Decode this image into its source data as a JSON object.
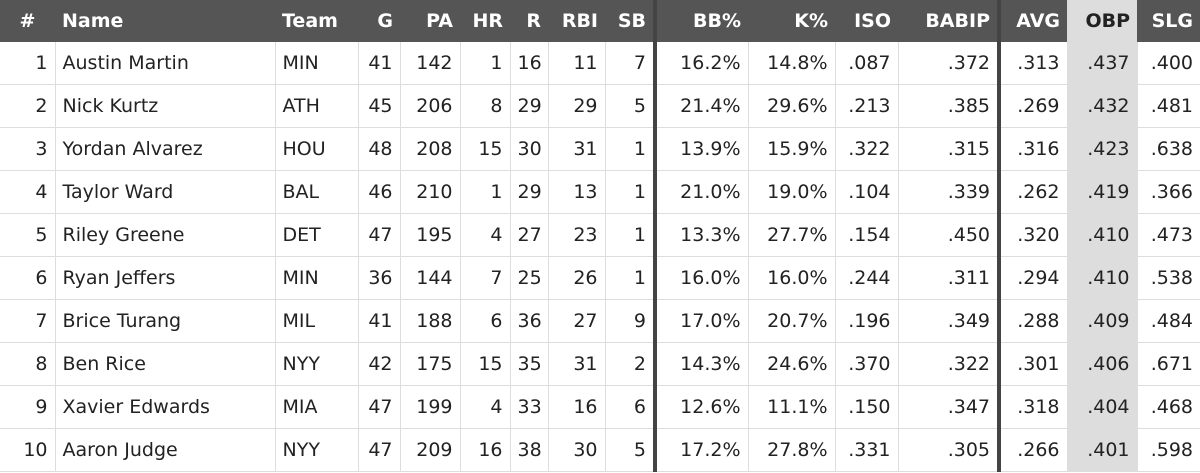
{
  "table": {
    "columns": [
      "#",
      "Name",
      "Team",
      "G",
      "PA",
      "HR",
      "R",
      "RBI",
      "SB",
      "BB%",
      "K%",
      "ISO",
      "BABIP",
      "AVG",
      "OBP",
      "SLG"
    ],
    "rows": [
      [
        "1",
        "Austin Martin",
        "MIN",
        "41",
        "142",
        "1",
        "16",
        "11",
        "7",
        "16.2%",
        "14.8%",
        ".087",
        ".372",
        ".313",
        ".437",
        ".400"
      ],
      [
        "2",
        "Nick Kurtz",
        "ATH",
        "45",
        "206",
        "8",
        "29",
        "29",
        "5",
        "21.4%",
        "29.6%",
        ".213",
        ".385",
        ".269",
        ".432",
        ".481"
      ],
      [
        "3",
        "Yordan Alvarez",
        "HOU",
        "48",
        "208",
        "15",
        "30",
        "31",
        "1",
        "13.9%",
        "15.9%",
        ".322",
        ".315",
        ".316",
        ".423",
        ".638"
      ],
      [
        "4",
        "Taylor Ward",
        "BAL",
        "46",
        "210",
        "1",
        "29",
        "13",
        "1",
        "21.0%",
        "19.0%",
        ".104",
        ".339",
        ".262",
        ".419",
        ".366"
      ],
      [
        "5",
        "Riley Greene",
        "DET",
        "47",
        "195",
        "4",
        "27",
        "23",
        "1",
        "13.3%",
        "27.7%",
        ".154",
        ".450",
        ".320",
        ".410",
        ".473"
      ],
      [
        "6",
        "Ryan Jeffers",
        "MIN",
        "36",
        "144",
        "7",
        "25",
        "26",
        "1",
        "16.0%",
        "16.0%",
        ".244",
        ".311",
        ".294",
        ".410",
        ".538"
      ],
      [
        "7",
        "Brice Turang",
        "MIL",
        "41",
        "188",
        "6",
        "36",
        "27",
        "9",
        "17.0%",
        "20.7%",
        ".196",
        ".349",
        ".288",
        ".409",
        ".484"
      ],
      [
        "8",
        "Ben Rice",
        "NYY",
        "42",
        "175",
        "15",
        "35",
        "31",
        "2",
        "14.3%",
        "24.6%",
        ".370",
        ".322",
        ".301",
        ".406",
        ".671"
      ],
      [
        "9",
        "Xavier Edwards",
        "MIA",
        "47",
        "199",
        "4",
        "33",
        "16",
        "6",
        "12.6%",
        "11.1%",
        ".150",
        ".347",
        ".318",
        ".404",
        ".468"
      ],
      [
        "10",
        "Aaron Judge",
        "NYY",
        "47",
        "209",
        "16",
        "38",
        "30",
        "5",
        "17.2%",
        "27.8%",
        ".331",
        ".305",
        ".266",
        ".401",
        ".598"
      ]
    ]
  }
}
